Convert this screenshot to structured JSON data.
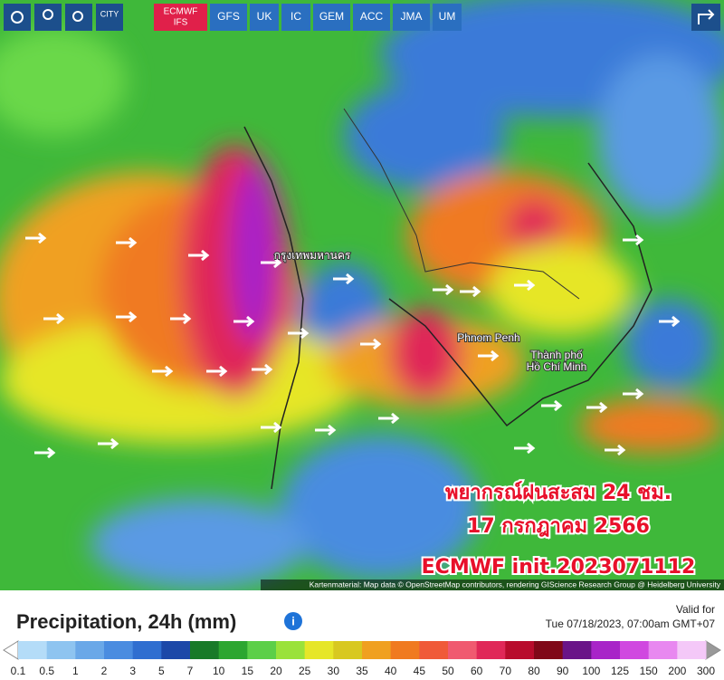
{
  "toolbar": {
    "city": "CITY",
    "models": [
      {
        "label": "ECMWF",
        "sub": "IFS",
        "active": true
      },
      {
        "label": "GFS"
      },
      {
        "label": "UK"
      },
      {
        "label": "IC"
      },
      {
        "label": "GEM"
      },
      {
        "label": "ACC"
      },
      {
        "label": "JMA"
      },
      {
        "label": "UM"
      }
    ]
  },
  "map": {
    "places": [
      "Phnom Penh",
      "Thành phố",
      "Hồ Chí Minh",
      "กรุงเทพมหานคร"
    ],
    "overlay": [
      "พยากรณ์ฝนสะสม 24 ชม.",
      "17 กรกฎาคม 2566",
      "ECMWF init.2023071112"
    ],
    "attribution": "Kartenmaterial: Map data © OpenStreetMap contributors, rendering GIScience Research Group @ Heidelberg University"
  },
  "legend": {
    "title": "Precipitation, 24h (mm)",
    "valid_label": "Valid for",
    "valid_time": "Tue 07/18/2023, 07:00am GMT+07",
    "labels": [
      0.1,
      0.5,
      1,
      2,
      3,
      5,
      7,
      10,
      15,
      20,
      25,
      30,
      35,
      40,
      45,
      50,
      60,
      70,
      80,
      90,
      100,
      125,
      150,
      200,
      300
    ],
    "colors": [
      "#b4dcf8",
      "#8ec4f0",
      "#6aa8e8",
      "#4a8ce0",
      "#2f6ed0",
      "#1c48a8",
      "#187a28",
      "#2ca630",
      "#5ccf48",
      "#9ae23a",
      "#e6e628",
      "#d8c820",
      "#f0a020",
      "#f07a20",
      "#f05a38",
      "#f05a70",
      "#e02858",
      "#b80c2c",
      "#800818",
      "#6a1488",
      "#a824c8",
      "#d048e0",
      "#e888f0",
      "#f4c8f8"
    ]
  }
}
